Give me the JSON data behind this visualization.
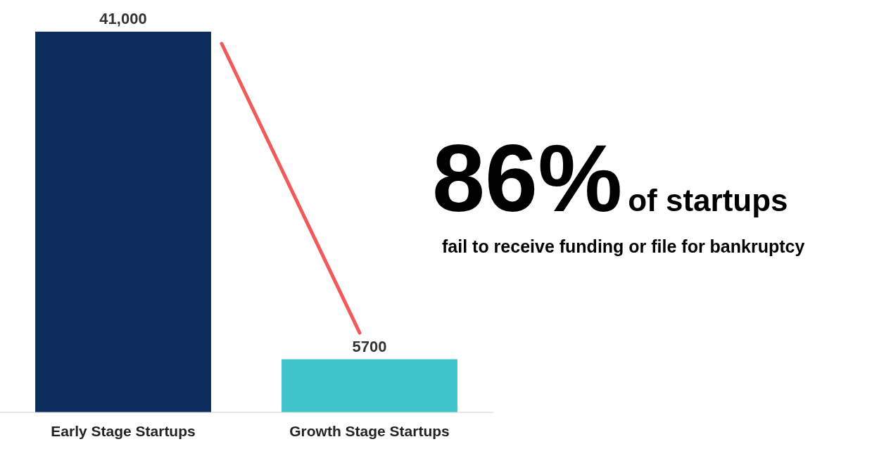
{
  "chart_data": {
    "type": "bar",
    "categories": [
      "Early Stage Startups",
      "Growth Stage Startups"
    ],
    "values": [
      41000,
      5700
    ],
    "value_labels": [
      "41,000",
      "5700"
    ],
    "colors": [
      "#0c2d5e",
      "#40c4cc"
    ],
    "legend": false,
    "grid": false,
    "annotations": [
      "86%",
      "of startups",
      "fail to receive funding or file for bankruptcy"
    ]
  }
}
